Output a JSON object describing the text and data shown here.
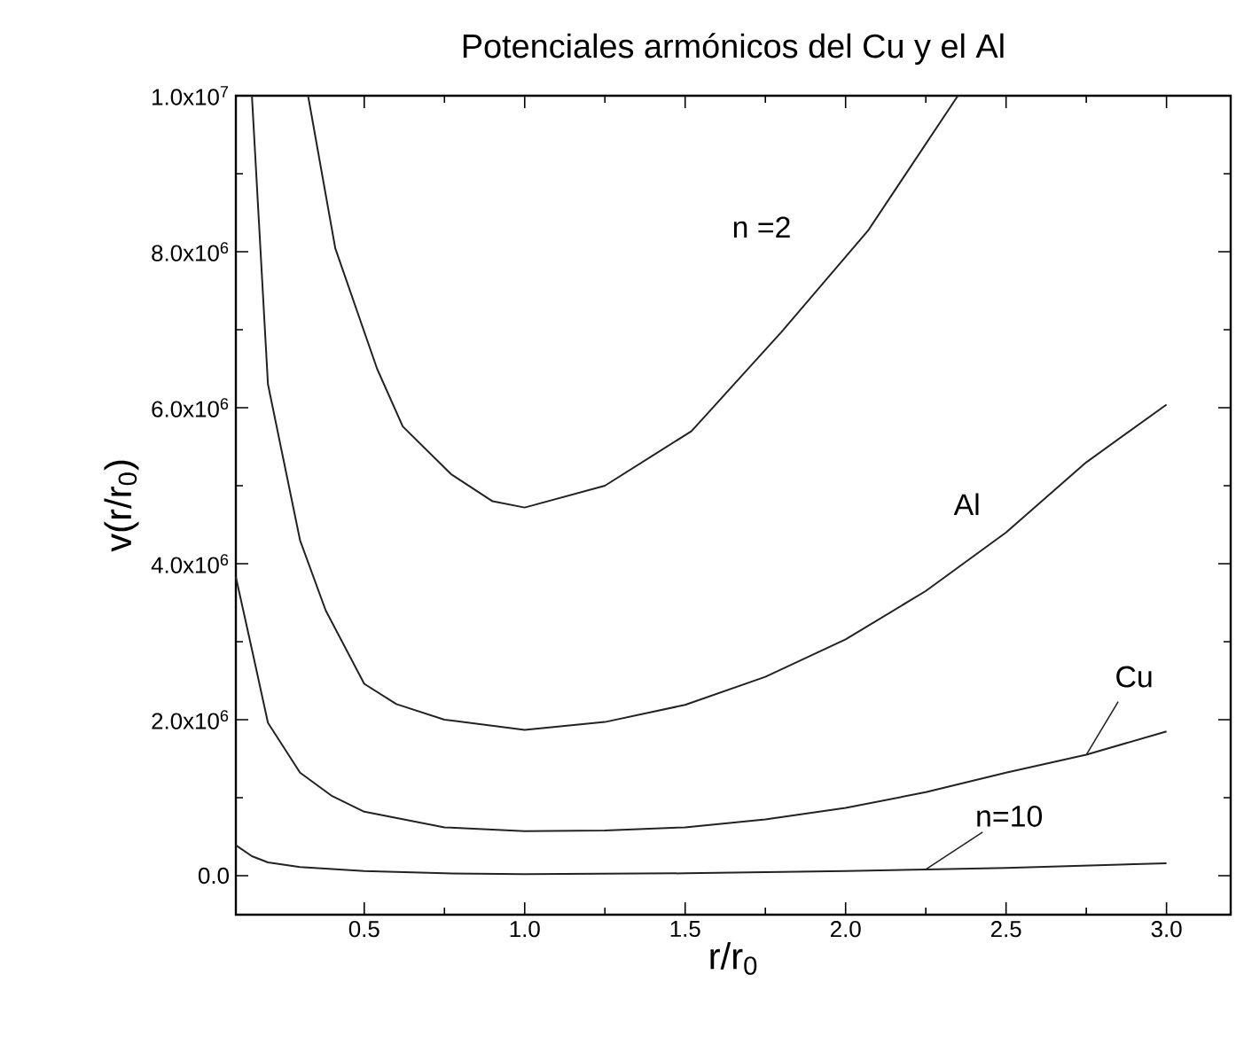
{
  "chart_data": {
    "type": "line",
    "title": "Potenciales armónicos del Cu y el Al",
    "xlabel": "r/r$_{0}$",
    "ylabel": "v(r/r$_{0}$)",
    "xlim": [
      0.1,
      3.2
    ],
    "ylim": [
      -500000,
      10000000
    ],
    "xticks": [
      {
        "value": 0.5,
        "label": "0.5"
      },
      {
        "value": 1.0,
        "label": "1.0"
      },
      {
        "value": 1.5,
        "label": "1.5"
      },
      {
        "value": 2.0,
        "label": "2.0"
      },
      {
        "value": 2.5,
        "label": "2.5"
      },
      {
        "value": 3.0,
        "label": "3.0"
      }
    ],
    "yticks": [
      {
        "value": 0,
        "label": "0.0"
      },
      {
        "value": 2000000,
        "label": "2.0x10$^{6}$"
      },
      {
        "value": 4000000,
        "label": "4.0x10$^{6}$"
      },
      {
        "value": 6000000,
        "label": "6.0x10$^{6}$"
      },
      {
        "value": 8000000,
        "label": "8.0x10$^{6}$"
      },
      {
        "value": 10000000,
        "label": "1.0x10$^{7}$"
      }
    ],
    "series": [
      {
        "name": "n =2",
        "color": "#222222",
        "x": [
          0.325,
          0.41,
          0.54,
          0.62,
          0.77,
          0.9,
          1.0,
          1.25,
          1.52,
          1.8,
          2.07,
          2.35
        ],
        "values": [
          10000000,
          8040000,
          6500000,
          5760000,
          5150000,
          4800000,
          4720000,
          5000000,
          5700000,
          6970000,
          8270000,
          10000000
        ]
      },
      {
        "name": "Al",
        "color": "#222222",
        "x": [
          0.15,
          0.2,
          0.25,
          0.3,
          0.38,
          0.5,
          0.6,
          0.75,
          1.0,
          1.25,
          1.5,
          1.75,
          2.0,
          2.25,
          2.5,
          2.75,
          3.0
        ],
        "values": [
          10000000,
          6300000,
          5300000,
          4300000,
          3400000,
          2460000,
          2200000,
          2000000,
          1870000,
          1970000,
          2190000,
          2550000,
          3030000,
          3650000,
          4400000,
          5300000,
          6040000
        ]
      },
      {
        "name": "Cu",
        "color": "#222222",
        "x": [
          0.1,
          0.15,
          0.2,
          0.3,
          0.4,
          0.5,
          0.75,
          1.0,
          1.25,
          1.5,
          1.75,
          2.0,
          2.25,
          2.5,
          2.75,
          3.0
        ],
        "values": [
          3830000,
          2900000,
          1960000,
          1320000,
          1020000,
          820000,
          620000,
          570000,
          580000,
          620000,
          720000,
          870000,
          1070000,
          1320000,
          1550000,
          1850000
        ]
      },
      {
        "name": "n=10",
        "color": "#222222",
        "x": [
          0.1,
          0.15,
          0.2,
          0.3,
          0.5,
          0.75,
          1.0,
          1.5,
          2.0,
          2.25,
          2.5,
          3.0
        ],
        "values": [
          390000,
          250000,
          170000,
          110000,
          60000,
          30000,
          20000,
          30000,
          60000,
          80000,
          100000,
          160000
        ]
      }
    ]
  }
}
